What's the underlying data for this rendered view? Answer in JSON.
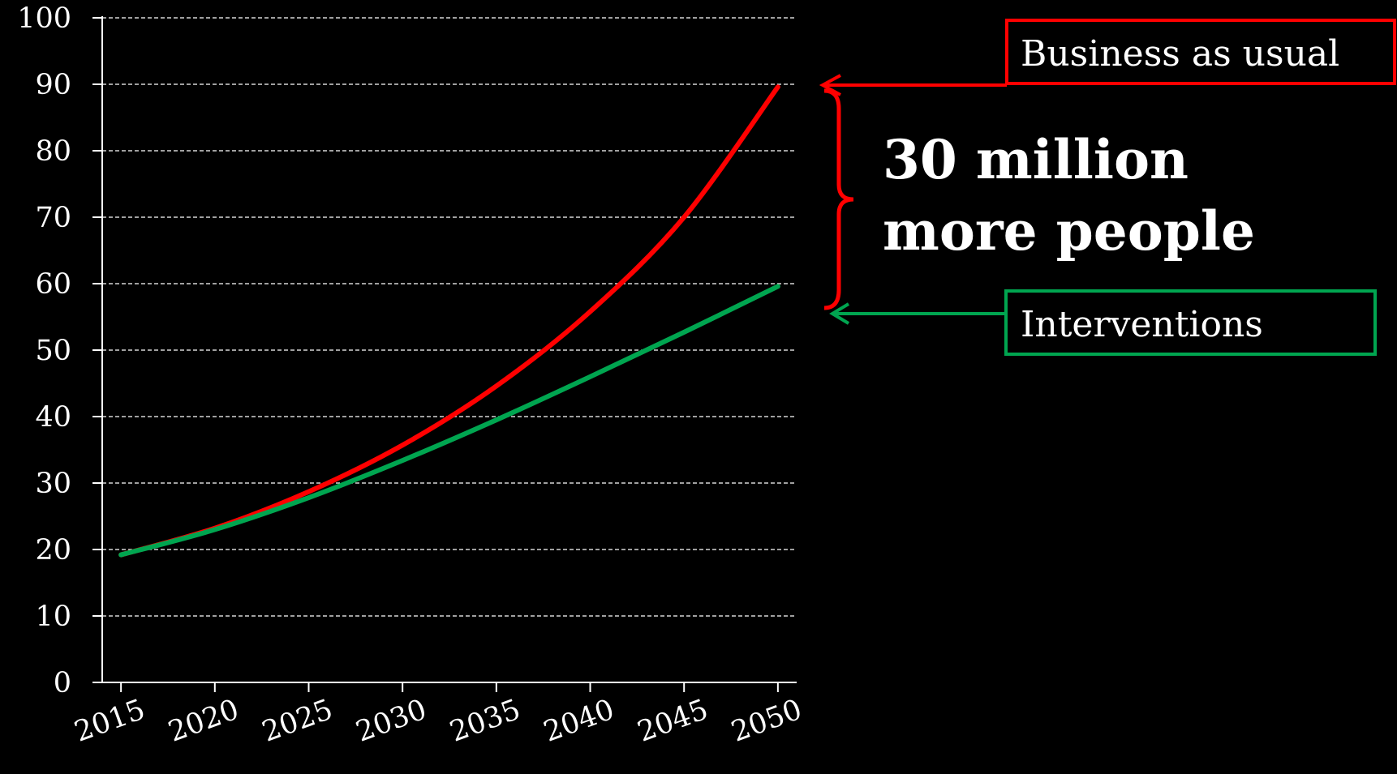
{
  "chart_data": {
    "type": "line",
    "title": "",
    "xlabel": "",
    "ylabel": "",
    "xlim": [
      2014,
      2051
    ],
    "ylim": [
      0,
      100
    ],
    "y_ticks": [
      "0",
      "10",
      "20",
      "30",
      "40",
      "50",
      "60",
      "70",
      "80",
      "90",
      "100"
    ],
    "x_ticks": [
      "2015",
      "2020",
      "2025",
      "2030",
      "2035",
      "2040",
      "2045",
      "2050"
    ],
    "grid": true,
    "series": [
      {
        "name": "Business as usual",
        "color": "#ff0000",
        "x": [
          2015,
          2020,
          2025,
          2030,
          2035,
          2040,
          2045,
          2050
        ],
        "y": [
          19.2,
          23.2,
          28.7,
          35.7,
          44.6,
          55.8,
          70.0,
          89.6
        ]
      },
      {
        "name": "Interventions",
        "color": "#00a550",
        "x": [
          2015,
          2020,
          2025,
          2030,
          2035,
          2040,
          2045,
          2050
        ],
        "y": [
          19.2,
          23.0,
          27.8,
          33.4,
          39.5,
          46.0,
          52.7,
          59.6
        ]
      }
    ],
    "annotation": {
      "line1": "30 million",
      "line2": "more people",
      "bau_y": 90,
      "int_y": 60
    }
  },
  "colors": {
    "background": "#000000",
    "text": "#ffffff",
    "red": "#ff0000",
    "green": "#00a550",
    "grid": "#ffffff"
  }
}
